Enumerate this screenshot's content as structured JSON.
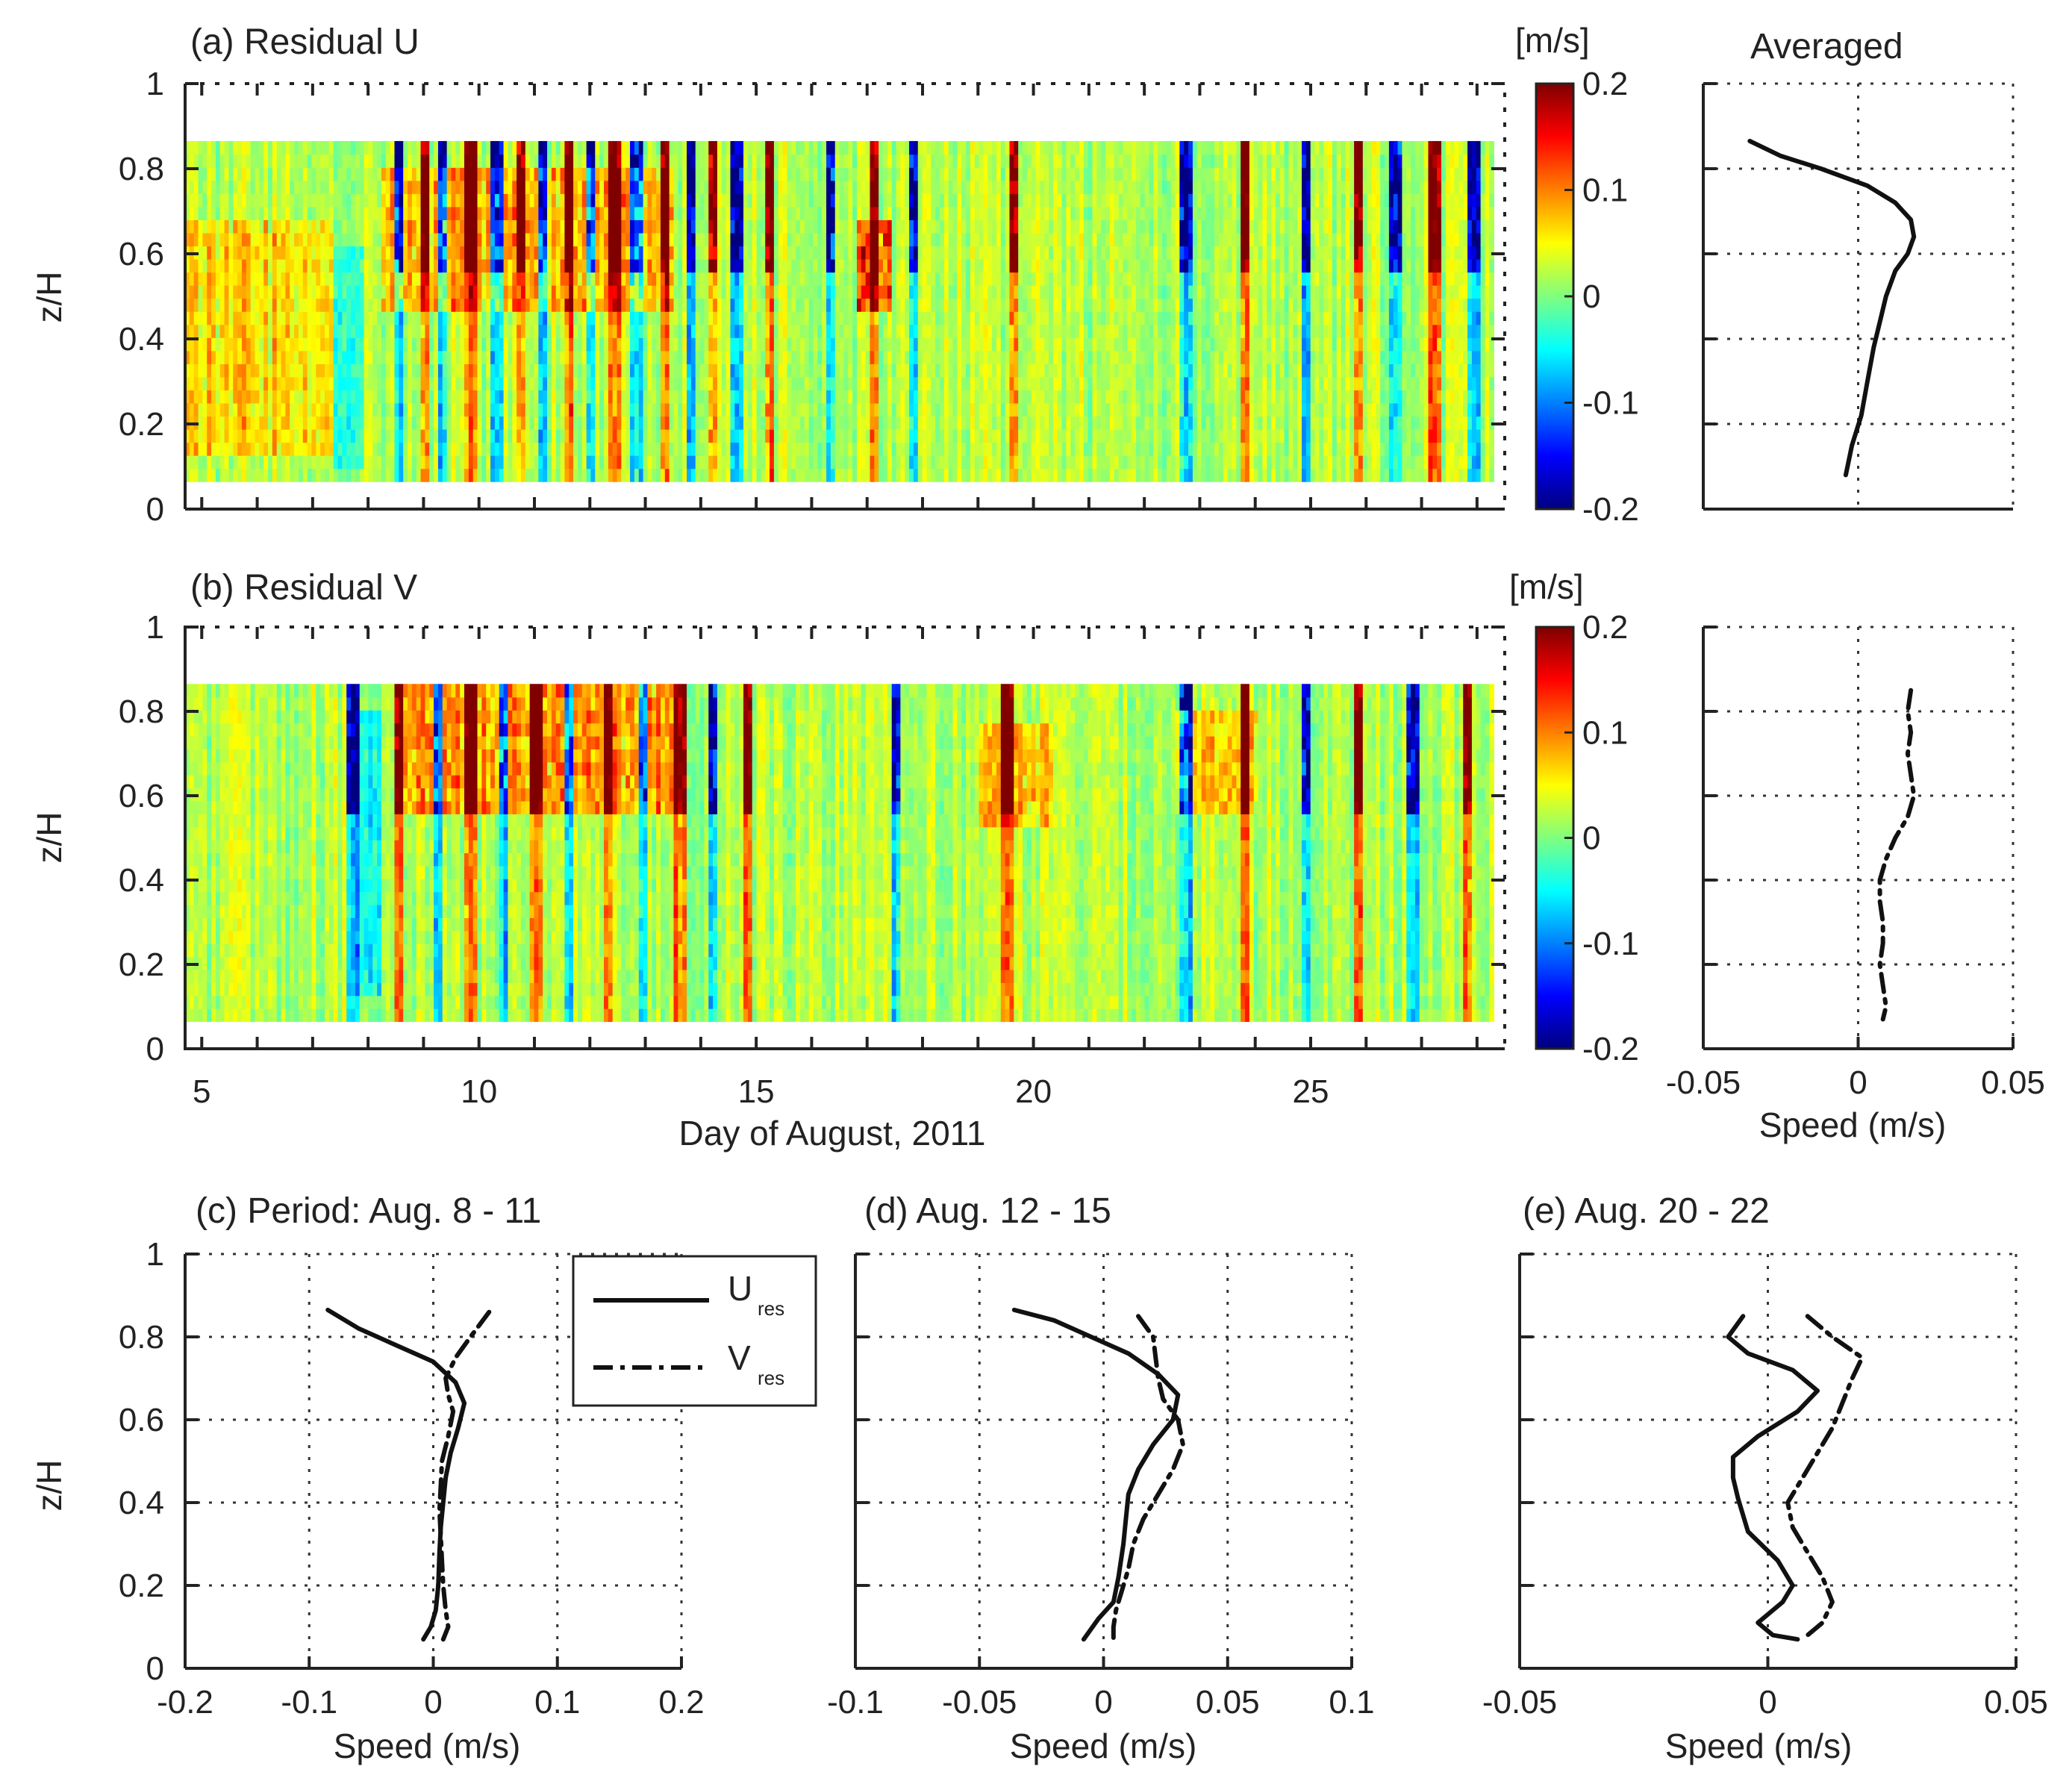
{
  "chart_data": [
    {
      "id": "a",
      "type": "heatmap",
      "title": "(a) Residual U",
      "xlabel": "",
      "ylabel": "z/H",
      "xlim": [
        4.7,
        28.5
      ],
      "ylim": [
        0,
        1
      ],
      "xticks": [
        5,
        10,
        15,
        20,
        25
      ],
      "yticks": [
        0,
        0.2,
        0.4,
        0.6,
        0.8,
        1
      ],
      "ytick_labels": [
        "0",
        "0.2",
        "0.4",
        "0.6",
        "0.8",
        "1"
      ],
      "data_extent": {
        "z_min": 0.065,
        "z_max": 0.865
      },
      "colorbar": {
        "label": "[m/s]",
        "range": [
          -0.2,
          0.2
        ],
        "ticks": [
          "0.2",
          "0.1",
          "0",
          "-0.1",
          "-0.2"
        ]
      },
      "strong_events_day": [
        8.5,
        9.0,
        9.3,
        9.8,
        10.3,
        10.7,
        11.1,
        11.6,
        12.0,
        12.4,
        12.8,
        13.3,
        13.8,
        14.2,
        14.6,
        15.2,
        16.3,
        17.1,
        17.8,
        19.6,
        22.7,
        23.8,
        24.9,
        25.8,
        26.5,
        27.2,
        27.9
      ],
      "warm_patches": [
        {
          "day": [
            8.2,
            13.5
          ],
          "z": [
            0.45,
            0.8
          ],
          "value": 0.06
        },
        {
          "day": [
            16.8,
            17.4
          ],
          "z": [
            0.45,
            0.65
          ],
          "value": 0.1
        },
        {
          "day": [
            4.7,
            7.3
          ],
          "z": [
            0.1,
            0.65
          ],
          "value": 0.04
        }
      ],
      "cool_patches": [
        {
          "day": [
            7.3,
            7.9
          ],
          "z": [
            0.07,
            0.6
          ],
          "value": -0.04
        }
      ]
    },
    {
      "id": "b",
      "type": "heatmap",
      "title": "(b) Residual V",
      "xlabel": "Day of August, 2011",
      "ylabel": "z/H",
      "xlim": [
        4.7,
        28.5
      ],
      "ylim": [
        0,
        1
      ],
      "xticks": [
        5,
        10,
        15,
        20,
        25
      ],
      "xtick_labels": [
        "5",
        "10",
        "15",
        "20",
        "25"
      ],
      "yticks": [
        0,
        0.2,
        0.4,
        0.6,
        0.8,
        1
      ],
      "ytick_labels": [
        "0",
        "0.2",
        "0.4",
        "0.6",
        "0.8",
        "1"
      ],
      "data_extent": {
        "z_min": 0.065,
        "z_max": 0.865
      },
      "colorbar": {
        "label": "[m/s]",
        "range": [
          -0.2,
          0.2
        ],
        "ticks": [
          "0.2",
          "0.1",
          "0",
          "-0.1",
          "-0.2"
        ]
      },
      "strong_events_day": [
        7.7,
        8.5,
        9.2,
        9.8,
        10.4,
        11.0,
        11.6,
        12.3,
        12.9,
        13.6,
        14.2,
        14.8,
        17.5,
        19.5,
        22.7,
        23.8,
        24.9,
        25.8,
        26.8,
        27.8
      ],
      "warm_patches": [
        {
          "day": [
            8.5,
            13.5
          ],
          "z": [
            0.55,
            0.85
          ],
          "value": 0.07
        },
        {
          "day": [
            19.0,
            20.3
          ],
          "z": [
            0.5,
            0.75
          ],
          "value": 0.05
        },
        {
          "day": [
            22.5,
            24.0
          ],
          "z": [
            0.55,
            0.8
          ],
          "value": 0.05
        }
      ],
      "cool_patches": [
        {
          "day": [
            7.7,
            8.2
          ],
          "z": [
            0.1,
            0.8
          ],
          "value": -0.05
        }
      ]
    },
    {
      "id": "avg_u",
      "type": "line",
      "title": "Averaged",
      "xlabel": "",
      "ylabel": "",
      "xlim": [
        -0.05,
        0.05
      ],
      "ylim": [
        0,
        1
      ],
      "grid": true,
      "series": [
        {
          "name": "U",
          "style": "solid",
          "x": [
            -0.035,
            -0.025,
            -0.012,
            0.003,
            0.012,
            0.017,
            0.018,
            0.016,
            0.012,
            0.009,
            0.007,
            0.005,
            0.003,
            0.001,
            -0.002,
            -0.004
          ],
          "y": [
            0.865,
            0.83,
            0.8,
            0.76,
            0.72,
            0.68,
            0.64,
            0.6,
            0.56,
            0.5,
            0.44,
            0.38,
            0.3,
            0.22,
            0.15,
            0.08
          ]
        }
      ]
    },
    {
      "id": "avg_v",
      "type": "line",
      "title": "",
      "xlabel": "Speed (m/s)",
      "ylabel": "",
      "xlim": [
        -0.05,
        0.05
      ],
      "ylim": [
        0,
        1
      ],
      "xticks": [
        -0.05,
        0,
        0.05
      ],
      "xtick_labels": [
        "-0.05",
        "0",
        "0.05"
      ],
      "grid": true,
      "series": [
        {
          "name": "V",
          "style": "dashdot",
          "x": [
            0.017,
            0.016,
            0.017,
            0.016,
            0.017,
            0.018,
            0.016,
            0.012,
            0.009,
            0.007,
            0.007,
            0.008,
            0.008,
            0.007,
            0.008,
            0.009,
            0.008
          ],
          "y": [
            0.85,
            0.8,
            0.75,
            0.7,
            0.65,
            0.6,
            0.55,
            0.5,
            0.45,
            0.4,
            0.35,
            0.3,
            0.25,
            0.2,
            0.15,
            0.1,
            0.07
          ]
        }
      ]
    },
    {
      "id": "c",
      "type": "line",
      "title": "(c) Period: Aug. 8 - 11",
      "xlabel": "Speed (m/s)",
      "ylabel": "z/H",
      "xlim": [
        -0.2,
        0.2
      ],
      "ylim": [
        0,
        1
      ],
      "xticks": [
        -0.2,
        -0.1,
        0,
        0.1,
        0.2
      ],
      "xtick_labels": [
        "-0.2",
        "-0.1",
        "0",
        "0.1",
        "0.2"
      ],
      "yticks": [
        0,
        0.2,
        0.4,
        0.6,
        0.8,
        1
      ],
      "ytick_labels": [
        "0",
        "0.2",
        "0.4",
        "0.6",
        "0.8",
        "1"
      ],
      "grid": true,
      "legend": {
        "position": "top-right",
        "entries": [
          {
            "label": "U",
            "sub": "res",
            "style": "solid"
          },
          {
            "label": "V",
            "sub": "res",
            "style": "dashdot"
          }
        ]
      },
      "series": [
        {
          "name": "U_res",
          "style": "solid",
          "x": [
            -0.085,
            -0.06,
            -0.03,
            0.0,
            0.018,
            0.025,
            0.02,
            0.014,
            0.01,
            0.008,
            0.006,
            0.005,
            0.004,
            0.002,
            -0.002,
            -0.008
          ],
          "y": [
            0.865,
            0.82,
            0.78,
            0.74,
            0.69,
            0.64,
            0.58,
            0.52,
            0.46,
            0.4,
            0.34,
            0.28,
            0.2,
            0.14,
            0.1,
            0.07
          ]
        },
        {
          "name": "V_res",
          "style": "dashdot",
          "x": [
            0.045,
            0.03,
            0.018,
            0.01,
            0.012,
            0.016,
            0.012,
            0.007,
            0.006,
            0.005,
            0.006,
            0.007,
            0.008,
            0.01,
            0.012,
            0.008
          ],
          "y": [
            0.86,
            0.8,
            0.75,
            0.7,
            0.66,
            0.62,
            0.56,
            0.5,
            0.44,
            0.38,
            0.32,
            0.26,
            0.2,
            0.14,
            0.1,
            0.07
          ]
        }
      ]
    },
    {
      "id": "d",
      "type": "line",
      "title": "(d) Aug. 12 - 15",
      "xlabel": "Speed (m/s)",
      "ylabel": "",
      "xlim": [
        -0.1,
        0.1
      ],
      "ylim": [
        0,
        1
      ],
      "xticks": [
        -0.1,
        -0.05,
        0,
        0.05,
        0.1
      ],
      "xtick_labels": [
        "-0.1",
        "-0.05",
        "0",
        "0.05",
        "0.1"
      ],
      "grid": true,
      "series": [
        {
          "name": "U_res",
          "style": "solid",
          "x": [
            -0.036,
            -0.02,
            -0.005,
            0.01,
            0.022,
            0.03,
            0.028,
            0.02,
            0.014,
            0.01,
            0.009,
            0.008,
            0.006,
            0.004,
            -0.002,
            -0.008
          ],
          "y": [
            0.865,
            0.84,
            0.8,
            0.76,
            0.71,
            0.66,
            0.6,
            0.54,
            0.48,
            0.42,
            0.36,
            0.3,
            0.22,
            0.16,
            0.12,
            0.07
          ]
        },
        {
          "name": "V_res",
          "style": "dashdot",
          "x": [
            0.014,
            0.02,
            0.021,
            0.022,
            0.024,
            0.03,
            0.032,
            0.028,
            0.022,
            0.016,
            0.012,
            0.01,
            0.007,
            0.005,
            0.004,
            0.004
          ],
          "y": [
            0.85,
            0.8,
            0.75,
            0.7,
            0.65,
            0.6,
            0.54,
            0.48,
            0.42,
            0.36,
            0.3,
            0.24,
            0.18,
            0.14,
            0.1,
            0.07
          ]
        }
      ]
    },
    {
      "id": "e",
      "type": "line",
      "title": "(e) Aug. 20 - 22",
      "xlabel": "Speed (m/s)",
      "ylabel": "",
      "xlim": [
        -0.05,
        0.05
      ],
      "ylim": [
        0,
        1
      ],
      "xticks": [
        -0.05,
        0,
        0.05
      ],
      "xtick_labels": [
        "-0.05",
        "0",
        "0.05"
      ],
      "grid": true,
      "series": [
        {
          "name": "U_res",
          "style": "solid",
          "x": [
            -0.005,
            -0.008,
            -0.004,
            0.005,
            0.01,
            0.006,
            -0.002,
            -0.007,
            -0.007,
            -0.006,
            -0.004,
            0.002,
            0.005,
            0.003,
            -0.002,
            0.001,
            0.006
          ],
          "y": [
            0.85,
            0.8,
            0.76,
            0.72,
            0.67,
            0.62,
            0.56,
            0.51,
            0.46,
            0.41,
            0.33,
            0.26,
            0.2,
            0.16,
            0.11,
            0.08,
            0.07
          ]
        },
        {
          "name": "V_res",
          "style": "dashdot",
          "x": [
            0.008,
            0.013,
            0.019,
            0.017,
            0.015,
            0.013,
            0.01,
            0.007,
            0.004,
            0.005,
            0.008,
            0.011,
            0.013,
            0.011,
            0.008
          ],
          "y": [
            0.85,
            0.8,
            0.75,
            0.7,
            0.64,
            0.58,
            0.52,
            0.46,
            0.4,
            0.34,
            0.28,
            0.22,
            0.16,
            0.11,
            0.08
          ]
        }
      ]
    }
  ]
}
